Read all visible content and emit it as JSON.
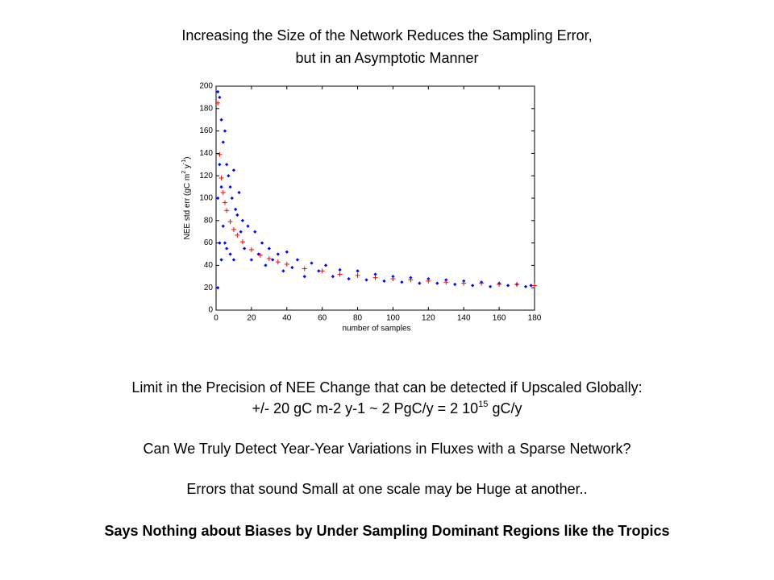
{
  "slide": {
    "title_lines": [
      "Increasing the Size of the Network Reduces the Sampling Error,",
      "but in an Asymptotic Manner"
    ],
    "line1": "Limit in the Precision of NEE Change that can be detected if Upscaled Globally:",
    "line2_parts": [
      "+/- 20 gC m-2 y-1 ~ 2 PgC/y = 2 10",
      "15",
      " gC/y"
    ],
    "line3": "Can We Truly Detect Year-Year Variations in Fluxes with a Sparse Network?",
    "line4": "Errors that sound Small at one scale  may be Huge at another..",
    "line5": "Says Nothing about Biases by Under Sampling Dominant Regions like the Tropics"
  },
  "chart_data": {
    "type": "scatter",
    "xlabel": "number of samples",
    "ylabel_parts": [
      "NEE std err (gC m",
      "2",
      " y",
      "-1",
      ")"
    ],
    "xlim": [
      0,
      180
    ],
    "ylim": [
      0,
      200
    ],
    "xticks": [
      0,
      20,
      40,
      60,
      80,
      100,
      120,
      140,
      160,
      180
    ],
    "yticks": [
      0,
      20,
      40,
      60,
      80,
      100,
      120,
      140,
      160,
      180,
      200
    ],
    "series": [
      {
        "color": "#0000ff",
        "marker": "dot",
        "x": [
          1,
          1,
          1,
          2,
          2,
          2,
          3,
          3,
          3,
          4,
          4,
          5,
          5,
          6,
          6,
          7,
          8,
          8,
          9,
          10,
          10,
          11,
          12,
          13,
          14,
          15,
          16,
          18,
          20,
          22,
          24,
          26,
          28,
          30,
          32,
          35,
          38,
          40,
          43,
          46,
          50,
          54,
          58,
          62,
          66,
          70,
          75,
          80,
          85,
          90,
          95,
          100,
          105,
          110,
          115,
          120,
          125,
          130,
          135,
          140,
          145,
          150,
          155,
          160,
          165,
          170,
          175,
          178
        ],
        "values": [
          195,
          100,
          20,
          190,
          130,
          60,
          170,
          110,
          45,
          150,
          75,
          160,
          60,
          130,
          55,
          120,
          110,
          50,
          100,
          125,
          45,
          90,
          85,
          105,
          70,
          80,
          55,
          75,
          45,
          70,
          50,
          60,
          40,
          55,
          45,
          50,
          35,
          52,
          38,
          45,
          30,
          42,
          35,
          40,
          30,
          36,
          28,
          35,
          27,
          32,
          26,
          30,
          25,
          29,
          24,
          28,
          24,
          27,
          23,
          26,
          22,
          25,
          21,
          24,
          22,
          23,
          21,
          22
        ]
      },
      {
        "color": "#ff0000",
        "marker": "plus",
        "x": [
          1,
          2,
          3,
          4,
          5,
          6,
          8,
          10,
          12,
          15,
          20,
          25,
          30,
          35,
          40,
          50,
          60,
          70,
          80,
          90,
          100,
          110,
          120,
          130,
          140,
          150,
          160,
          170,
          180
        ],
        "values": [
          185,
          139,
          118,
          105,
          96,
          89,
          79,
          72,
          67,
          61,
          54,
          49,
          46,
          43,
          41,
          37,
          35,
          32,
          31,
          29,
          28,
          27,
          26,
          25,
          24,
          24,
          23,
          23,
          22
        ]
      }
    ]
  }
}
